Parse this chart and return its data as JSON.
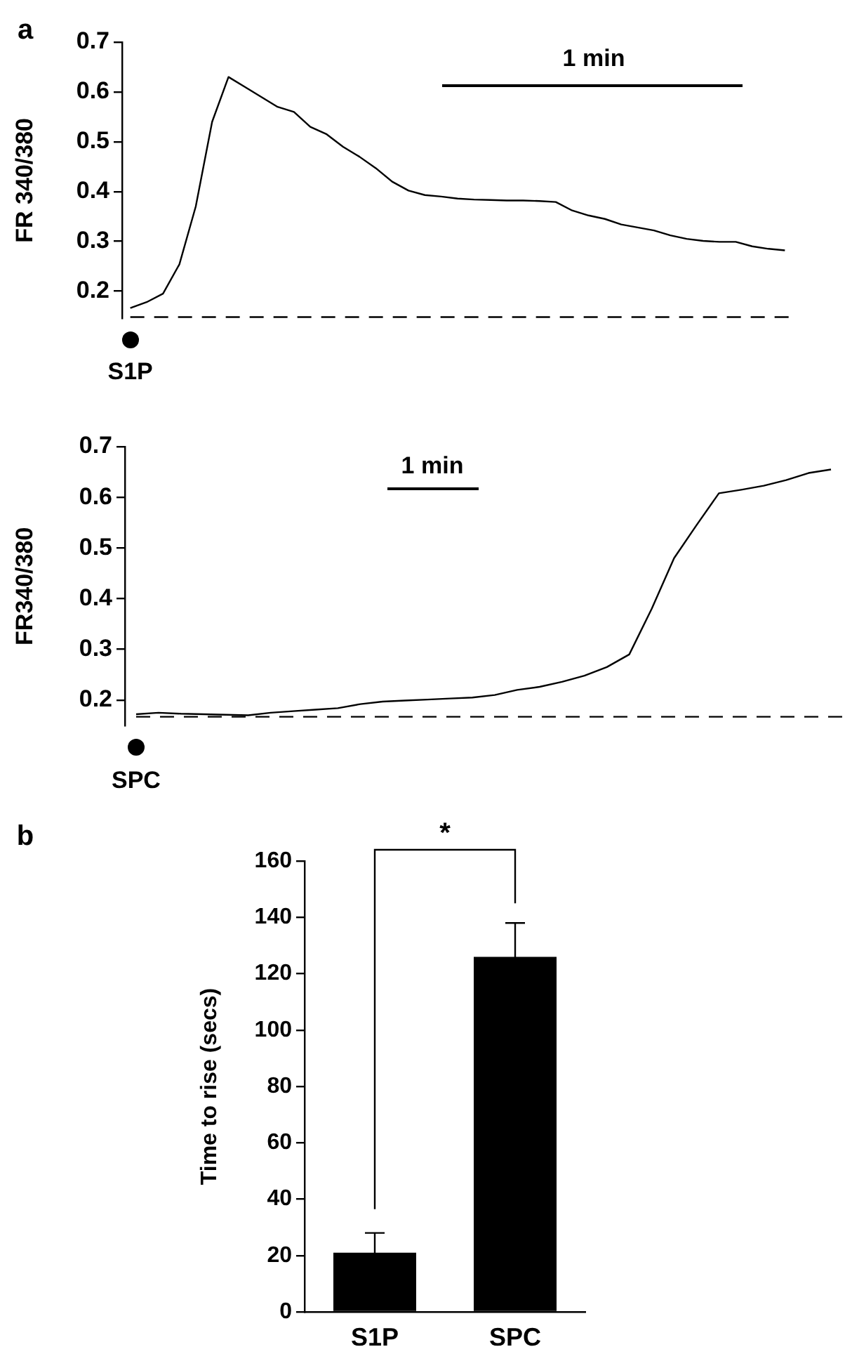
{
  "chart_data": [
    {
      "type": "line",
      "ylabel": "FR 340/380",
      "annotations": [
        "a",
        "1 min",
        "S1P"
      ],
      "categories": [
        null,
        null,
        null,
        null,
        null,
        null,
        null,
        null,
        null,
        null,
        null,
        null,
        null,
        null,
        null,
        null,
        null,
        null,
        null,
        null,
        null,
        null,
        null,
        null,
        null,
        null,
        null,
        null,
        null,
        null,
        null,
        null,
        null,
        null,
        null,
        null,
        null,
        null,
        null,
        null,
        null
      ],
      "values": [
        0.166,
        0.178,
        0.195,
        0.254,
        0.37,
        0.54,
        0.63,
        0.61,
        0.59,
        0.57,
        0.56,
        0.53,
        0.515,
        0.49,
        0.47,
        0.447,
        0.42,
        0.402,
        0.393,
        0.39,
        0.386,
        0.384,
        0.383,
        0.382,
        0.382,
        0.381,
        0.379,
        0.362,
        0.352,
        0.345,
        0.334,
        0.328,
        0.322,
        0.312,
        0.305,
        0.301,
        0.299,
        0.299,
        0.29,
        0.285,
        0.282
      ],
      "color": "#000000",
      "marker": "none",
      "ylim": [
        0.145,
        0.7
      ],
      "yticks": [
        0.2,
        0.3,
        0.4,
        0.5,
        0.6,
        0.7
      ],
      "grid": false,
      "tick_labels": "y",
      "ref_lines": [
        {
          "axis": "y",
          "value": 0.148,
          "color": "#000000",
          "line_style": "dashed"
        }
      ]
    },
    {
      "type": "line",
      "ylabel": "FR340/380",
      "annotations": [
        "1 min",
        "SPC"
      ],
      "categories": [
        null,
        null,
        null,
        null,
        null,
        null,
        null,
        null,
        null,
        null,
        null,
        null,
        null,
        null,
        null,
        null,
        null,
        null,
        null,
        null,
        null,
        null,
        null,
        null,
        null,
        null,
        null,
        null,
        null,
        null,
        null,
        null
      ],
      "values": [
        0.172,
        0.175,
        0.173,
        0.172,
        0.171,
        0.17,
        0.175,
        0.178,
        0.181,
        0.184,
        0.192,
        0.197,
        0.199,
        0.201,
        0.203,
        0.205,
        0.21,
        0.22,
        0.226,
        0.236,
        0.248,
        0.265,
        0.29,
        0.38,
        0.48,
        0.545,
        0.608,
        0.615,
        0.623,
        0.634,
        0.648,
        0.655
      ],
      "color": "#000000",
      "marker": "none",
      "ylim": [
        0.149,
        0.7
      ],
      "yticks": [
        0.2,
        0.3,
        0.4,
        0.5,
        0.6,
        0.7
      ],
      "grid": false,
      "tick_labels": "y",
      "ref_lines": [
        {
          "axis": "y",
          "value": 0.167,
          "color": "#000000",
          "line_style": "dashed"
        }
      ]
    },
    {
      "type": "bar",
      "ylabel": "Time to rise (secs)",
      "annotations": [
        "b",
        "*"
      ],
      "categories": [
        "S1P",
        "SPC"
      ],
      "values": [
        21,
        126
      ],
      "errors": [
        7,
        12
      ],
      "color": "#000000",
      "ylim": [
        0,
        160
      ],
      "yticks": [
        0,
        20,
        40,
        60,
        80,
        100,
        120,
        140,
        160
      ],
      "grid": false
    }
  ]
}
